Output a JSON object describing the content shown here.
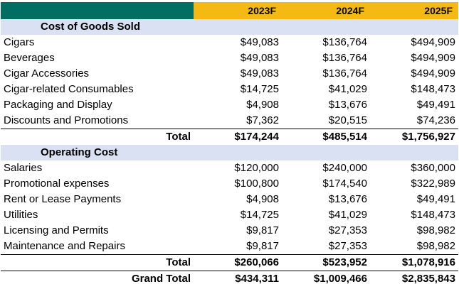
{
  "header": {
    "years": [
      "2023F",
      "2024F",
      "2025F"
    ]
  },
  "cogs": {
    "title": "Cost of Goods Sold",
    "rows": [
      {
        "label": "Cigars",
        "values": [
          "$49,083",
          "$136,764",
          "$494,909"
        ]
      },
      {
        "label": "Beverages",
        "values": [
          "$49,083",
          "$136,764",
          "$494,909"
        ]
      },
      {
        "label": "Cigar Accessories",
        "values": [
          "$49,083",
          "$136,764",
          "$494,909"
        ]
      },
      {
        "label": "Cigar-related Consumables",
        "values": [
          "$14,725",
          "$41,029",
          "$148,473"
        ]
      },
      {
        "label": "Packaging and Display",
        "values": [
          "$4,908",
          "$13,676",
          "$49,491"
        ]
      },
      {
        "label": "Discounts and Promotions",
        "values": [
          "$7,362",
          "$20,515",
          "$74,236"
        ]
      }
    ],
    "total": {
      "label": "Total",
      "values": [
        "$174,244",
        "$485,514",
        "$1,756,927"
      ]
    }
  },
  "opex": {
    "title": "Operating Cost",
    "rows": [
      {
        "label": "Salaries",
        "values": [
          "$120,000",
          "$240,000",
          "$360,000"
        ]
      },
      {
        "label": "Promotional expenses",
        "values": [
          "$100,800",
          "$174,540",
          "$322,989"
        ]
      },
      {
        "label": "Rent or Lease Payments",
        "values": [
          "$4,908",
          "$13,676",
          "$49,491"
        ]
      },
      {
        "label": "Utilities",
        "values": [
          "$14,725",
          "$41,029",
          "$148,473"
        ]
      },
      {
        "label": "Licensing and Permits",
        "values": [
          "$9,817",
          "$27,353",
          "$98,982"
        ]
      },
      {
        "label": "Maintenance and Repairs",
        "values": [
          "$9,817",
          "$27,353",
          "$98,982"
        ]
      }
    ],
    "total": {
      "label": "Total",
      "values": [
        "$260,066",
        "$523,952",
        "$1,078,916"
      ]
    }
  },
  "grand_total": {
    "label": "Grand Total",
    "values": [
      "$434,311",
      "$1,009,466",
      "$2,835,843"
    ]
  },
  "colors": {
    "header_green": "#006e63",
    "header_gold": "#f4b913",
    "section_band": "#d9e1f2"
  }
}
